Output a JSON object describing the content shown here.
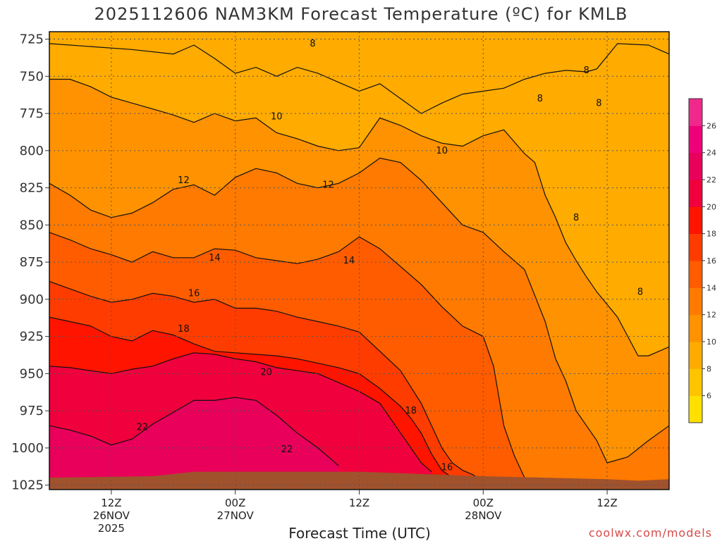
{
  "chart_data": {
    "type": "heatmap",
    "title": "2025112606 NAM3KM Forecast Temperature (ºC) for KMLB",
    "xlabel": "Forecast Time (UTC)",
    "ylabel": "",
    "credit": "coolwx.com/models",
    "y_axis": {
      "ticks": [
        725,
        750,
        775,
        800,
        825,
        850,
        875,
        900,
        925,
        950,
        975,
        1000,
        1025
      ],
      "ylim": [
        1028,
        720
      ],
      "units": "hPa"
    },
    "x_axis": {
      "ticks": [
        {
          "hour": 6,
          "lines": [
            "12Z",
            "26NOV",
            "2025"
          ]
        },
        {
          "hour": 18,
          "lines": [
            "00Z",
            "27NOV"
          ]
        },
        {
          "hour": 30,
          "lines": [
            "12Z"
          ]
        },
        {
          "hour": 42,
          "lines": [
            "00Z",
            "28NOV"
          ]
        },
        {
          "hour": 54,
          "lines": [
            "12Z"
          ]
        }
      ],
      "xlim": [
        0,
        60
      ],
      "units": "forecast hour"
    },
    "colorbar": {
      "ticks": [
        6,
        8,
        10,
        12,
        14,
        16,
        18,
        20,
        22,
        24,
        26
      ],
      "levels": [
        4,
        6,
        8,
        10,
        12,
        14,
        16,
        18,
        20,
        22,
        24,
        26,
        28
      ],
      "colors": [
        "#ffe000",
        "#ffc400",
        "#ffab00",
        "#ff9200",
        "#ff7a00",
        "#ff5c00",
        "#ff3c00",
        "#ff1400",
        "#f0003c",
        "#e8005a",
        "#f00078",
        "#f0288c"
      ]
    },
    "isotherms": [
      {
        "level": 8,
        "p": [
          [
            0,
            728
          ],
          [
            4,
            730
          ],
          [
            8,
            732
          ],
          [
            12,
            735
          ],
          [
            14,
            729
          ],
          [
            16,
            738
          ],
          [
            18,
            748
          ],
          [
            20,
            744
          ],
          [
            22,
            750
          ],
          [
            24,
            744
          ],
          [
            26,
            748
          ],
          [
            28,
            754
          ],
          [
            30,
            760
          ],
          [
            32,
            755
          ],
          [
            34,
            765
          ],
          [
            36,
            775
          ],
          [
            38,
            768
          ],
          [
            40,
            762
          ],
          [
            42,
            760
          ],
          [
            44,
            758
          ],
          [
            46,
            752
          ],
          [
            48,
            748
          ],
          [
            50,
            746
          ],
          [
            52,
            747
          ],
          [
            53,
            745
          ],
          [
            55,
            728
          ],
          [
            58,
            729
          ],
          [
            60,
            735
          ]
        ]
      },
      {
        "level": 10,
        "p": [
          [
            0,
            752
          ],
          [
            2,
            752
          ],
          [
            4,
            757
          ],
          [
            6,
            764
          ],
          [
            8,
            768
          ],
          [
            10,
            772
          ],
          [
            12,
            776
          ],
          [
            14,
            781
          ],
          [
            16,
            775
          ],
          [
            18,
            780
          ],
          [
            20,
            778
          ],
          [
            22,
            788
          ],
          [
            24,
            792
          ],
          [
            26,
            797
          ],
          [
            28,
            800
          ],
          [
            30,
            798
          ],
          [
            32,
            778
          ],
          [
            34,
            783
          ],
          [
            36,
            790
          ],
          [
            38,
            795
          ],
          [
            40,
            797
          ],
          [
            42,
            790
          ],
          [
            44,
            786
          ],
          [
            46,
            802
          ],
          [
            47,
            808
          ],
          [
            48,
            830
          ],
          [
            49,
            845
          ],
          [
            50,
            862
          ],
          [
            51,
            874
          ],
          [
            52,
            885
          ],
          [
            53,
            895
          ],
          [
            55,
            912
          ],
          [
            57,
            938
          ],
          [
            58,
            938
          ],
          [
            60,
            932
          ]
        ]
      },
      {
        "level": 12,
        "p": [
          [
            0,
            822
          ],
          [
            2,
            830
          ],
          [
            4,
            840
          ],
          [
            6,
            845
          ],
          [
            8,
            842
          ],
          [
            10,
            835
          ],
          [
            12,
            826
          ],
          [
            14,
            823
          ],
          [
            16,
            830
          ],
          [
            18,
            818
          ],
          [
            20,
            812
          ],
          [
            22,
            815
          ],
          [
            24,
            822
          ],
          [
            26,
            825
          ],
          [
            28,
            822
          ],
          [
            30,
            815
          ],
          [
            32,
            805
          ],
          [
            34,
            808
          ],
          [
            36,
            820
          ],
          [
            38,
            835
          ],
          [
            40,
            850
          ],
          [
            42,
            855
          ],
          [
            44,
            868
          ],
          [
            46,
            880
          ],
          [
            48,
            915
          ],
          [
            49,
            940
          ],
          [
            50,
            955
          ],
          [
            51,
            975
          ],
          [
            52,
            985
          ],
          [
            53,
            995
          ],
          [
            54,
            1010
          ],
          [
            56,
            1006
          ],
          [
            58,
            995
          ],
          [
            60,
            985
          ]
        ]
      },
      {
        "level": 14,
        "p": [
          [
            0,
            855
          ],
          [
            2,
            860
          ],
          [
            4,
            866
          ],
          [
            6,
            870
          ],
          [
            8,
            875
          ],
          [
            10,
            868
          ],
          [
            12,
            872
          ],
          [
            14,
            872
          ],
          [
            16,
            866
          ],
          [
            18,
            867
          ],
          [
            20,
            872
          ],
          [
            22,
            874
          ],
          [
            24,
            876
          ],
          [
            26,
            873
          ],
          [
            28,
            868
          ],
          [
            30,
            858
          ],
          [
            32,
            866
          ],
          [
            34,
            878
          ],
          [
            36,
            890
          ],
          [
            38,
            905
          ],
          [
            40,
            918
          ],
          [
            42,
            925
          ],
          [
            43,
            945
          ],
          [
            44,
            985
          ],
          [
            45,
            1005
          ],
          [
            46,
            1020
          ],
          [
            47,
            1028
          ]
        ]
      },
      {
        "level": 16,
        "p": [
          [
            0,
            888
          ],
          [
            2,
            893
          ],
          [
            4,
            898
          ],
          [
            6,
            902
          ],
          [
            8,
            900
          ],
          [
            10,
            896
          ],
          [
            12,
            898
          ],
          [
            14,
            902
          ],
          [
            16,
            900
          ],
          [
            18,
            906
          ],
          [
            20,
            906
          ],
          [
            22,
            908
          ],
          [
            24,
            912
          ],
          [
            26,
            915
          ],
          [
            28,
            918
          ],
          [
            30,
            922
          ],
          [
            32,
            935
          ],
          [
            34,
            948
          ],
          [
            36,
            970
          ],
          [
            37,
            985
          ],
          [
            38,
            1000
          ],
          [
            39,
            1010
          ],
          [
            40,
            1015
          ],
          [
            41,
            1018
          ],
          [
            42,
            1022
          ]
        ]
      },
      {
        "level": 18,
        "p": [
          [
            0,
            912
          ],
          [
            2,
            915
          ],
          [
            4,
            918
          ],
          [
            6,
            925
          ],
          [
            8,
            928
          ],
          [
            10,
            921
          ],
          [
            12,
            924
          ],
          [
            14,
            930
          ],
          [
            16,
            935
          ],
          [
            18,
            936
          ],
          [
            20,
            937
          ],
          [
            22,
            938
          ],
          [
            24,
            940
          ],
          [
            26,
            943
          ],
          [
            28,
            946
          ],
          [
            30,
            950
          ],
          [
            32,
            960
          ],
          [
            34,
            972
          ],
          [
            35,
            980
          ],
          [
            36,
            990
          ],
          [
            37,
            1004
          ],
          [
            38,
            1015
          ],
          [
            39,
            1020
          ]
        ]
      },
      {
        "level": 20,
        "p": [
          [
            0,
            945
          ],
          [
            2,
            946
          ],
          [
            4,
            948
          ],
          [
            6,
            950
          ],
          [
            8,
            947
          ],
          [
            10,
            945
          ],
          [
            12,
            940
          ],
          [
            14,
            936
          ],
          [
            16,
            937
          ],
          [
            18,
            940
          ],
          [
            20,
            942
          ],
          [
            22,
            946
          ],
          [
            24,
            948
          ],
          [
            26,
            950
          ],
          [
            28,
            956
          ],
          [
            30,
            962
          ],
          [
            32,
            970
          ],
          [
            33,
            980
          ],
          [
            34,
            990
          ],
          [
            35,
            1000
          ],
          [
            36,
            1010
          ],
          [
            37,
            1016
          ]
        ]
      },
      {
        "level": 22,
        "p": [
          [
            0,
            985
          ],
          [
            2,
            988
          ],
          [
            4,
            992
          ],
          [
            6,
            998
          ],
          [
            8,
            994
          ],
          [
            10,
            984
          ],
          [
            12,
            976
          ],
          [
            14,
            968
          ],
          [
            16,
            968
          ],
          [
            18,
            966
          ],
          [
            20,
            968
          ],
          [
            22,
            978
          ],
          [
            24,
            990
          ],
          [
            26,
            1000
          ],
          [
            27,
            1006
          ],
          [
            28,
            1012
          ]
        ]
      }
    ],
    "contour_labels": [
      {
        "text": "8",
        "hour": 25.5,
        "p": 728
      },
      {
        "text": "8",
        "hour": 47.5,
        "p": 765
      },
      {
        "text": "8",
        "hour": 52,
        "p": 746
      },
      {
        "text": "8",
        "hour": 53.2,
        "p": 768
      },
      {
        "text": "8",
        "hour": 51,
        "p": 845
      },
      {
        "text": "8",
        "hour": 57.2,
        "p": 895
      },
      {
        "text": "10",
        "hour": 22,
        "p": 777
      },
      {
        "text": "10",
        "hour": 38,
        "p": 800
      },
      {
        "text": "12",
        "hour": 13,
        "p": 820
      },
      {
        "text": "12",
        "hour": 27,
        "p": 823
      },
      {
        "text": "14",
        "hour": 16,
        "p": 872
      },
      {
        "text": "14",
        "hour": 29,
        "p": 874
      },
      {
        "text": "16",
        "hour": 14,
        "p": 896
      },
      {
        "text": "18",
        "hour": 13,
        "p": 920
      },
      {
        "text": "20",
        "hour": 21,
        "p": 949
      },
      {
        "text": "22",
        "hour": 9,
        "p": 986
      },
      {
        "text": "22",
        "hour": 23,
        "p": 1001
      },
      {
        "text": "18",
        "hour": 35,
        "p": 975
      },
      {
        "text": "16",
        "hour": 38.5,
        "p": 1013
      }
    ]
  }
}
